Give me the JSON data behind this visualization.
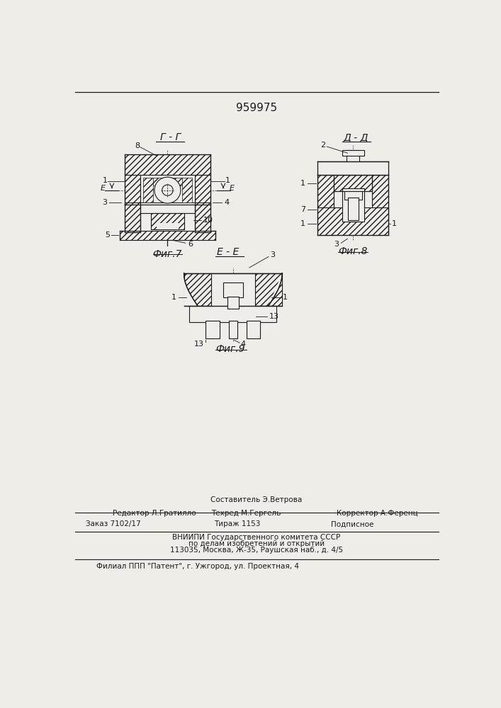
{
  "patent_number": "959975",
  "bg_color": "#f0ede8",
  "line_color": "#1a1a1a",
  "fig7_title": "Г - Г",
  "fig8_title": "Д - Д",
  "fig9_title": "Е - Е",
  "fig7_label": "Фиг.7",
  "fig8_label": "Фиг.8",
  "fig9_label": "Фиг.9",
  "footer_top": "Составитель Э.Ветрова",
  "footer_left": "Редактор Л.Гратилло",
  "footer_center": "Техред М.Гергель",
  "footer_right": "Корректор А.Ференц",
  "footer_col1": "Заказ 7102/17",
  "footer_col2": "Тираж 1153",
  "footer_col3": "Подписное",
  "footer_vniip1": "ВНИИПИ Государственного комитета СССР",
  "footer_vniip2": "по делам изобретений и открытий",
  "footer_vniip3": "113035, Москва, Ж-35, Раушская наб., д. 4/5",
  "footer_filial": "Филиал ППП \"Патент\", г. Ужгород, ул. Проектная, 4"
}
